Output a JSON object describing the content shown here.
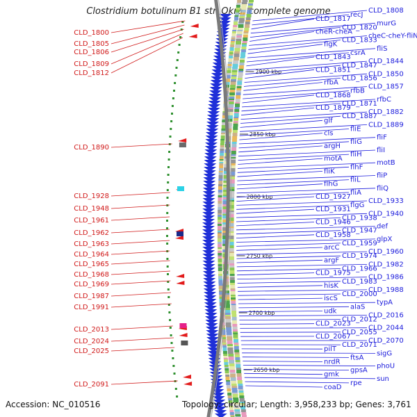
{
  "title": "Clostridium botulinum B1 str. Okra, complete genome",
  "accession": "Accession: NC_010516",
  "topology": "Topology: circular; Length: 3,958,233 bp; Genes: 3,761",
  "colors": {
    "forward_label": "#1a1adc",
    "reverse_label": "#d01818",
    "backbone": "#7a7a7a"
  },
  "kbp_markers": [
    "2900 kbp",
    "2850 kbp",
    "2800 kbp",
    "2750 kbp",
    "2700 kbp",
    "2650 kbp"
  ],
  "right_labels": [
    "CLD_1808",
    "recJ",
    "CLD_1817",
    "murG",
    "CLD_1820",
    "cheR-cheA",
    "cheC-cheY-fliN",
    "CLD_1833",
    "flgK",
    "fliS",
    "csrA",
    "CLD_1843",
    "CLD_1844",
    "CLD_1847",
    "CLD_1851",
    "CLD_1850",
    "CLD_1856",
    "rfbA",
    "CLD_1857",
    "rfbB",
    "CLD_1868",
    "rfbC",
    "CLD_1871",
    "CLD_1879",
    "CLD_1882",
    "CLD_1887",
    "glf",
    "CLD_1889",
    "fliE",
    "cls",
    "fliF",
    "fliG",
    "argH",
    "fliI",
    "fliH",
    "motA",
    "motB",
    "flhF",
    "fliK",
    "fliP",
    "fliL",
    "flhG",
    "fliQ",
    "fliA",
    "CLD_1927",
    "CLD_1933",
    "flgG",
    "CLD_1931",
    "CLD_1940",
    "CLD_1938",
    "CLD_1946",
    "def",
    "CLD_1947",
    "CLD_1958",
    "glpX",
    "CLD_1959",
    "arcC",
    "CLD_1960",
    "CLD_1974",
    "argF",
    "CLD_1982",
    "CLD_1966",
    "CLD_1975",
    "CLD_1986",
    "CLD_1983",
    "hisK",
    "CLD_1988",
    "CLD_2000",
    "iscS",
    "typA",
    "alaS",
    "udk",
    "CLD_2016",
    "CLD_2012",
    "CLD_2023",
    "CLD_2044",
    "CLD_2055",
    "CLD_2067",
    "CLD_2070",
    "CLD_2071",
    "pilT",
    "sigG",
    "ftsA",
    "nrdR",
    "phoU",
    "gpsA",
    "gmk",
    "sun",
    "rpe",
    "coaD"
  ],
  "left_labels": [
    "CLD_1800",
    "CLD_1805",
    "CLD_1806",
    "CLD_1809",
    "CLD_1812",
    "CLD_1890",
    "CLD_1928",
    "CLD_1948",
    "CLD_1961",
    "CLD_1962",
    "CLD_1963",
    "CLD_1964",
    "CLD_1965",
    "CLD_1968",
    "CLD_1969",
    "CLD_1987",
    "CLD_1991",
    "CLD_2013",
    "CLD_2024",
    "CLD_2025",
    "CLD_2091"
  ]
}
